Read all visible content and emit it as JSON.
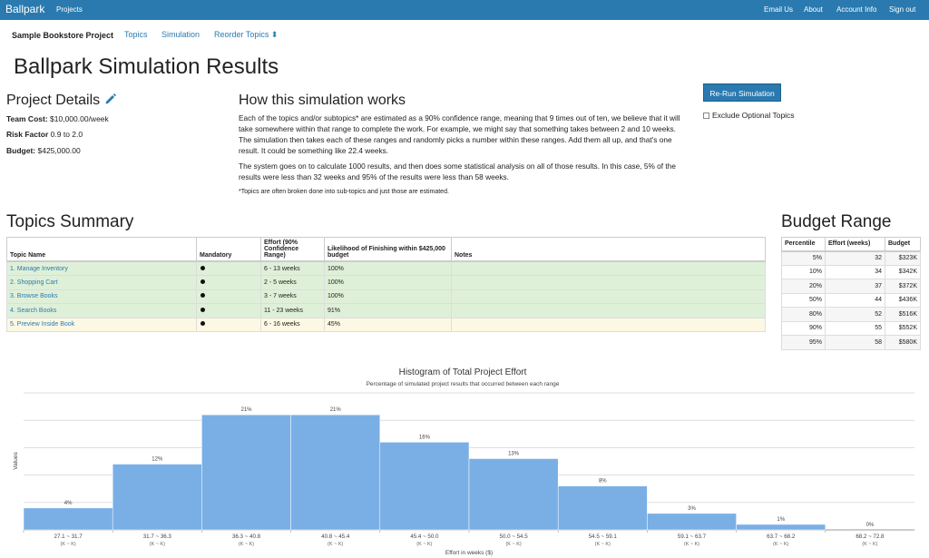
{
  "navbar": {
    "brand": "Ballpark",
    "projects": "Projects",
    "email_us": "Email Us",
    "about": "About",
    "account_info": "Account Info",
    "sign_out": "Sign out",
    "color": "#2a7ab0"
  },
  "subnav": {
    "project_name": "Sample Bookstore Project",
    "topics": "Topics",
    "simulation": "Simulation",
    "reorder": "Reorder Topics ⬍"
  },
  "page_title": "Ballpark Simulation Results",
  "project_details": {
    "heading": "Project Details",
    "edit_icon": "pencil-icon",
    "team_cost_label": "Team Cost:",
    "team_cost": "$10,000.00/week",
    "risk_label": "Risk Factor",
    "risk": "0.9 to 2.0",
    "budget_label": "Budget:",
    "budget": "$425,000.00"
  },
  "how": {
    "heading": "How this simulation works",
    "p1": "Each of the topics and/or subtopics* are estimated as a 90% confidence range, meaning that 9 times out of ten, we believe that it will take somewhere within that range to complete the work. For example, we might say that something takes between 2 and 10 weeks. The simulation then takes each of these ranges and randomly picks a number within these ranges. Add them all up, and that's one result. It could be something like 22.4 weeks.",
    "p2": "The system goes on to calculate 1000 results, and then does some statistical analysis on all of those results. In this case, 5% of the results were less than 32 weeks and 95% of the results were less than 58 weeks.",
    "note": "*Topics are often broken done into sub-topics and just those are estimated."
  },
  "actions": {
    "rerun": "Re-Run Simulation",
    "exclude": "Exclude Optional Topics"
  },
  "topics_summary": {
    "heading": "Topics Summary",
    "headers": [
      "Topic Name",
      "Mandatory",
      "Effort (90% Confidence Range)",
      "Likelihood of Finishing within $425,000 budget",
      "Notes"
    ],
    "rows": [
      {
        "name": "1. Manage Inventory",
        "effort": "6 - 13 weeks",
        "likelihood": "100%",
        "status": "ok"
      },
      {
        "name": "2. Shopping Cart",
        "effort": "2 - 5 weeks",
        "likelihood": "100%",
        "status": "ok"
      },
      {
        "name": "3. Browse Books",
        "effort": "3 - 7 weeks",
        "likelihood": "100%",
        "status": "ok"
      },
      {
        "name": "4. Search Books",
        "effort": "11 - 23 weeks",
        "likelihood": "91%",
        "status": "ok"
      },
      {
        "name": "5. Preview Inside Book",
        "effort": "6 - 16 weeks",
        "likelihood": "45%",
        "status": "warn"
      }
    ]
  },
  "budget_range": {
    "heading": "Budget Range",
    "headers": [
      "Percentile",
      "Effort (weeks)",
      "Budget"
    ],
    "rows": [
      [
        "5%",
        "32",
        "$323K"
      ],
      [
        "10%",
        "34",
        "$342K"
      ],
      [
        "20%",
        "37",
        "$372K"
      ],
      [
        "50%",
        "44",
        "$436K"
      ],
      [
        "80%",
        "52",
        "$516K"
      ],
      [
        "90%",
        "55",
        "$552K"
      ],
      [
        "95%",
        "58",
        "$580K"
      ]
    ]
  },
  "chart_data": {
    "type": "bar",
    "title": "Histogram of Total Project Effort",
    "subtitle": "Percentage of simulated project results that occurred between each range",
    "xlabel": "Effort in weeks ($)",
    "ylabel": "Values",
    "categories": [
      "27.1 ~ 31.7",
      "31.7 ~ 36.3",
      "36.3 ~ 40.8",
      "40.8 ~ 45.4",
      "45.4 ~ 50.0",
      "50.0 ~ 54.5",
      "54.5 ~ 59.1",
      "59.1 ~ 63.7",
      "63.7 ~ 68.2",
      "68.2 ~ 72.8"
    ],
    "sublabel": "(K ~ K)",
    "values": [
      4,
      12,
      21,
      21,
      16,
      13,
      8,
      3,
      1,
      0
    ],
    "data_labels": [
      "4%",
      "12%",
      "21%",
      "21%",
      "16%",
      "13%",
      "8%",
      "3%",
      "1%",
      "0%"
    ],
    "ylim": [
      0,
      25
    ],
    "grid": true,
    "bar_color": "#7aafe6"
  }
}
